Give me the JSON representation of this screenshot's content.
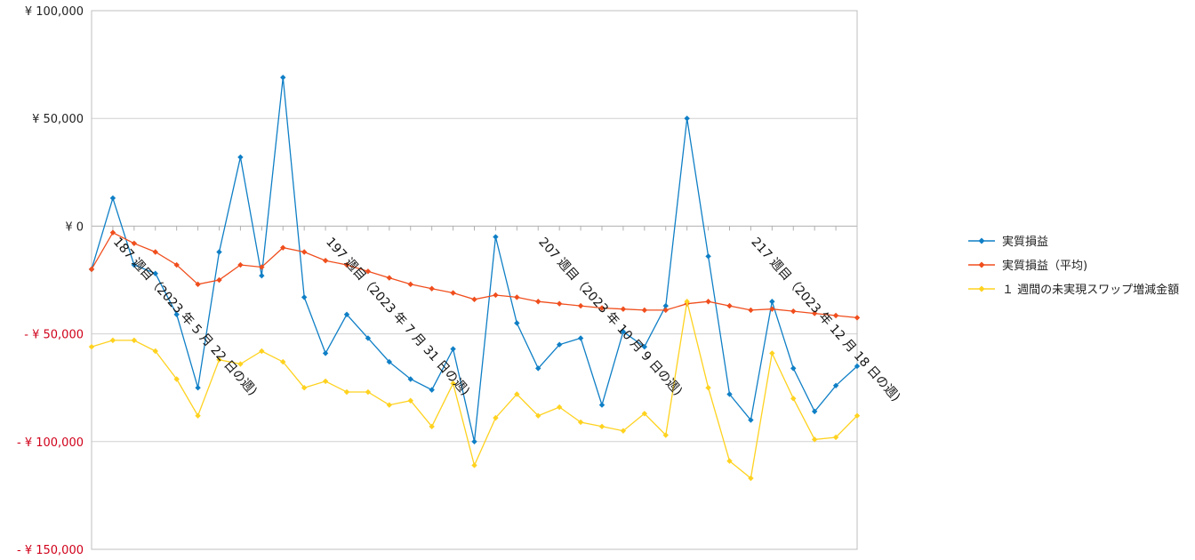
{
  "chart_data": {
    "type": "line",
    "ylim": [
      -150000,
      100000
    ],
    "yticks": [
      {
        "value": 100000,
        "label": "¥ 100,000"
      },
      {
        "value": 50000,
        "label": "¥ 50,000"
      },
      {
        "value": 0,
        "label": "¥ 0"
      },
      {
        "value": -50000,
        "label": "- ¥ 50,000"
      },
      {
        "value": -100000,
        "label": "- ¥ 100,000"
      },
      {
        "value": -150000,
        "label": "- ¥ 150,000"
      }
    ],
    "grid": true,
    "legend_position": "right",
    "x": [
      186,
      187,
      188,
      189,
      190,
      191,
      192,
      193,
      194,
      195,
      196,
      197,
      198,
      199,
      200,
      201,
      202,
      203,
      204,
      205,
      206,
      207,
      208,
      209,
      210,
      211,
      212,
      213,
      214,
      215,
      216,
      217,
      218,
      219,
      220,
      221,
      222
    ],
    "x_labels": [
      {
        "x": 187,
        "label": "187 週目（2023 年 5 月 22 日の週)"
      },
      {
        "x": 197,
        "label": "197 週目（2023 年 7 月 31 日の週)"
      },
      {
        "x": 207,
        "label": "207 週目（2023 年 10 月 9 日の週)"
      },
      {
        "x": 217,
        "label": "217 週目（2023 年 12 月 18 日の週)"
      }
    ],
    "series": [
      {
        "name": "実質損益",
        "color": "#0f7fc6",
        "values": [
          -20000,
          13000,
          -18000,
          -22000,
          -41000,
          -75000,
          -12000,
          32000,
          -23000,
          69000,
          -33000,
          -59000,
          -41000,
          -52000,
          -63000,
          -71000,
          -76000,
          -57000,
          -100000,
          -5000,
          -45000,
          -66000,
          -55000,
          -52000,
          -83000,
          -49000,
          -56000,
          -37000,
          50000,
          -14000,
          -78000,
          -90000,
          -35000,
          -66000,
          -86000,
          -74000,
          -65000
        ]
      },
      {
        "name": "実質損益（平均)",
        "color": "#f04e1d",
        "values": [
          -20000,
          -3000,
          -8000,
          -12000,
          -18000,
          -27000,
          -25000,
          -18000,
          -19000,
          -10000,
          -12000,
          -16000,
          -18000,
          -21000,
          -24000,
          -27000,
          -29000,
          -31000,
          -34000,
          -32000,
          -33000,
          -35000,
          -36000,
          -37000,
          -38000,
          -38500,
          -39000,
          -39000,
          -36000,
          -35000,
          -37000,
          -39000,
          -38500,
          -39500,
          -40500,
          -41500,
          -42500
        ]
      },
      {
        "name": "１ 週間の未実現スワップ増減金額",
        "color": "#ffd21f",
        "values": [
          -56000,
          -53000,
          -53000,
          -58000,
          -71000,
          -88000,
          -62000,
          -64000,
          -58000,
          -63000,
          -75000,
          -72000,
          -77000,
          -77000,
          -83000,
          -81000,
          -93000,
          -73000,
          -111000,
          -89000,
          -78000,
          -88000,
          -84000,
          -91000,
          -93000,
          -95000,
          -87000,
          -97000,
          -35000,
          -75000,
          -109000,
          -117000,
          -59000,
          -80000,
          -99000,
          -98000,
          -88000
        ]
      }
    ]
  }
}
